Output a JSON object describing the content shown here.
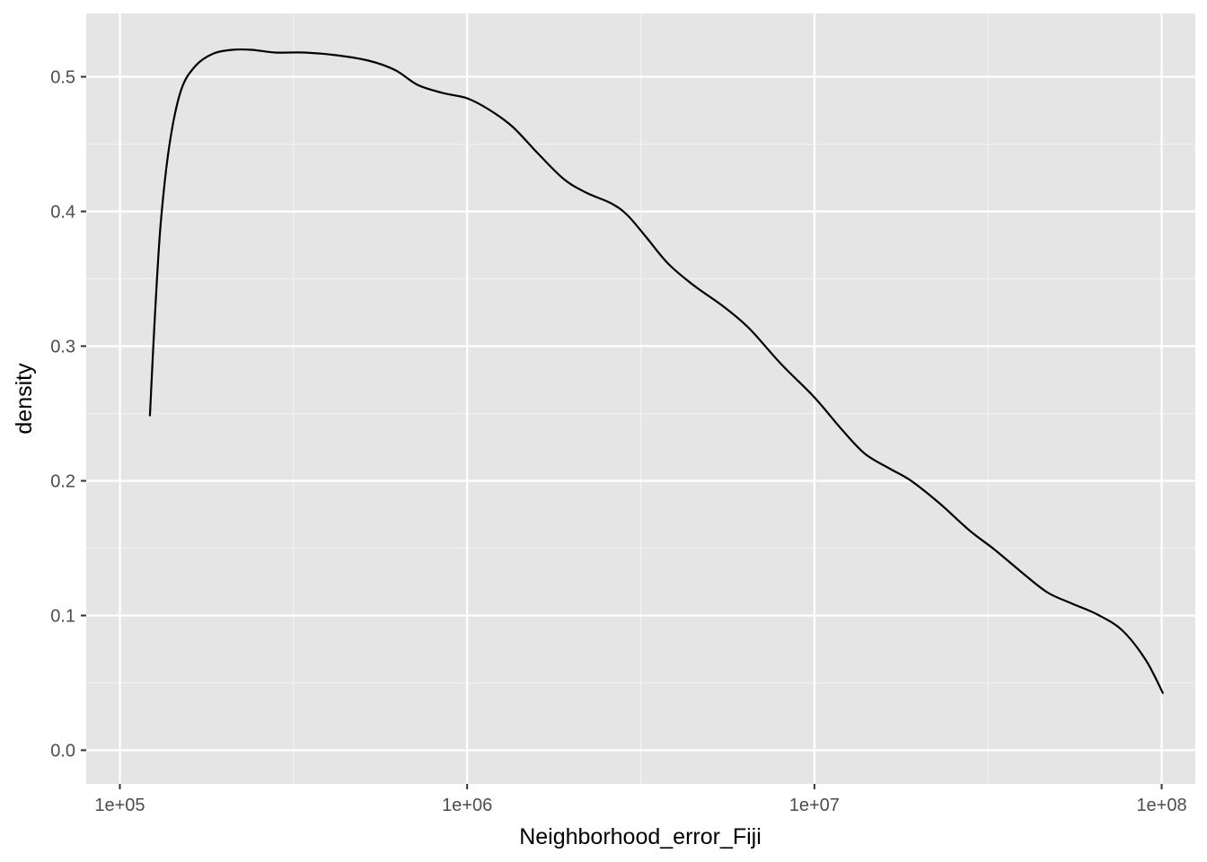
{
  "chart_data": {
    "type": "line",
    "title": "",
    "xlabel": "Neighborhood_error_Fiji",
    "ylabel": "density",
    "x_scale": "log10",
    "xlim": [
      80000,
      125000000
    ],
    "ylim": [
      -0.025,
      0.547
    ],
    "x_ticks": [
      {
        "value": 100000,
        "label": "1e+05"
      },
      {
        "value": 1000000,
        "label": "1e+06"
      },
      {
        "value": 10000000,
        "label": "1e+07"
      },
      {
        "value": 100000000,
        "label": "1e+08"
      }
    ],
    "y_ticks": [
      {
        "value": 0.0,
        "label": "0.0"
      },
      {
        "value": 0.1,
        "label": "0.1"
      },
      {
        "value": 0.2,
        "label": "0.2"
      },
      {
        "value": 0.3,
        "label": "0.3"
      },
      {
        "value": 0.4,
        "label": "0.4"
      },
      {
        "value": 0.5,
        "label": "0.5"
      }
    ],
    "grid": true,
    "legend": "none",
    "series": [
      {
        "color": "#000000",
        "points": [
          [
            122000,
            0.248
          ],
          [
            126000,
            0.32
          ],
          [
            131000,
            0.39
          ],
          [
            139000,
            0.45
          ],
          [
            150000,
            0.49
          ],
          [
            165000,
            0.508
          ],
          [
            185000,
            0.517
          ],
          [
            210000,
            0.52
          ],
          [
            240000,
            0.52
          ],
          [
            280000,
            0.518
          ],
          [
            340000,
            0.518
          ],
          [
            420000,
            0.516
          ],
          [
            520000,
            0.512
          ],
          [
            620000,
            0.505
          ],
          [
            720000,
            0.494
          ],
          [
            850000,
            0.488
          ],
          [
            1000000,
            0.484
          ],
          [
            1150000,
            0.476
          ],
          [
            1350000,
            0.463
          ],
          [
            1600000,
            0.443
          ],
          [
            1900000,
            0.424
          ],
          [
            2200000,
            0.414
          ],
          [
            2600000,
            0.406
          ],
          [
            2900000,
            0.397
          ],
          [
            3300000,
            0.38
          ],
          [
            3800000,
            0.361
          ],
          [
            4500000,
            0.345
          ],
          [
            5500000,
            0.329
          ],
          [
            6500000,
            0.313
          ],
          [
            8000000,
            0.287
          ],
          [
            10000000,
            0.262
          ],
          [
            12000000,
            0.238
          ],
          [
            14000000,
            0.22
          ],
          [
            16500000,
            0.209
          ],
          [
            19000000,
            0.2
          ],
          [
            23000000,
            0.183
          ],
          [
            28000000,
            0.163
          ],
          [
            33000000,
            0.149
          ],
          [
            40000000,
            0.131
          ],
          [
            47000000,
            0.117
          ],
          [
            55000000,
            0.109
          ],
          [
            65000000,
            0.101
          ],
          [
            77000000,
            0.089
          ],
          [
            90000000,
            0.067
          ],
          [
            101000000,
            0.042
          ]
        ]
      }
    ]
  }
}
